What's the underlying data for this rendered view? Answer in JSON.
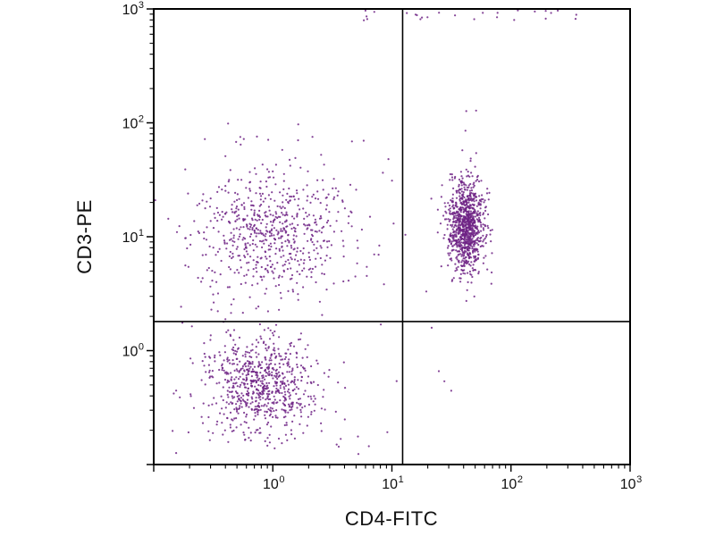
{
  "chart_data": {
    "type": "scatter",
    "title": "",
    "xlabel": "CD4-FITC",
    "ylabel": "CD3-PE",
    "x_scale": "log",
    "y_scale": "log",
    "x_range": [
      0.1,
      1000
    ],
    "y_range": [
      0.1,
      1000
    ],
    "x_tick_exponents": [
      0,
      1,
      2,
      3
    ],
    "y_tick_exponents": [
      0,
      1,
      2,
      3
    ],
    "minor_log_ticks": true,
    "grid": false,
    "legend": "none",
    "quadrant_gates": {
      "x": 12.3,
      "y": 1.8
    },
    "dot_color": "#6e2385",
    "dot_radius": 1.1,
    "dot_opacity": 0.85,
    "axis_color": "#000000",
    "seed": 20240042,
    "clusters": [
      {
        "name": "CD3+ CD4- cells (upper-left quadrant)",
        "distribution": "lognormal",
        "approx_center": [
          0.93,
          11
        ],
        "mean_log10": [
          -0.03,
          1.04
        ],
        "sd_log10": [
          0.33,
          0.26
        ],
        "count": 620
      },
      {
        "name": "CD3+ CD4+ T helper cells (upper-right quadrant, dense)",
        "distribution": "lognormal",
        "approx_center": [
          42,
          12
        ],
        "mean_log10": [
          1.62,
          1.08
        ],
        "sd_log10": [
          0.075,
          0.2
        ],
        "count": 950
      },
      {
        "name": "CD3- CD4- cells (lower-left quadrant)",
        "distribution": "lognormal",
        "approx_center": [
          0.79,
          0.5
        ],
        "mean_log10": [
          -0.1,
          -0.3
        ],
        "sd_log10": [
          0.23,
          0.21
        ],
        "count": 720
      },
      {
        "name": "background scatter (sparse)",
        "distribution": "uniform_log",
        "x_log_range": [
          -0.9,
          1.05
        ],
        "y_log_range": [
          -0.95,
          2.0
        ],
        "count": 90
      },
      {
        "name": "CD4+ high-PE tail",
        "distribution": "lognormal",
        "mean_log10": [
          1.62,
          1.75
        ],
        "sd_log10": [
          0.06,
          0.3
        ],
        "count": 12
      },
      {
        "name": "sparse lower-right events",
        "distribution": "uniform_log",
        "x_log_range": [
          1.1,
          1.9
        ],
        "y_log_range": [
          -0.6,
          0.9
        ],
        "count": 8
      },
      {
        "name": "top-edge pileup events",
        "distribution": "uniform_log",
        "x_log_range": [
          0.7,
          2.55
        ],
        "y_log_range": [
          2.9,
          2.99
        ],
        "count": 26
      }
    ]
  }
}
